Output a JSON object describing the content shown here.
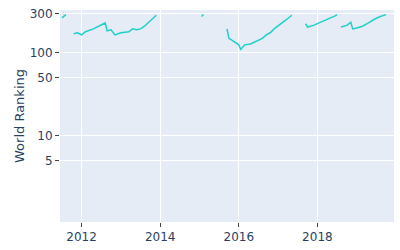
{
  "chart_data": {
    "type": "line",
    "y_label": "World Ranking",
    "color": "#1fd0c8",
    "log": "y",
    "grid": true,
    "xlim": [
      2011.45,
      2019.95
    ],
    "xticks": [
      2012,
      2014,
      2016,
      2018
    ],
    "ylim": [
      0.9,
      330
    ],
    "yticks": [
      5,
      10,
      50,
      100,
      300
    ],
    "x": [
      2011.5,
      2011.55,
      2011.6,
      null,
      2011.8,
      2011.9,
      2012.0,
      2012.1,
      2012.3,
      2012.5,
      2012.6,
      2012.65,
      2012.75,
      2012.85,
      2013.0,
      2013.2,
      2013.3,
      2013.4,
      2013.5,
      2013.6,
      2013.75,
      2013.85,
      2013.9,
      null,
      2015.05,
      2015.1,
      null,
      2015.7,
      2015.75,
      2015.85,
      2015.95,
      2016.0,
      2016.05,
      2016.15,
      2016.3,
      2016.4,
      2016.5,
      2016.6,
      2016.7,
      2016.8,
      2016.9,
      2017.0,
      2017.1,
      2017.2,
      2017.3,
      2017.35,
      null,
      2017.7,
      2017.75,
      2017.9,
      2018.0,
      2018.15,
      2018.3,
      2018.45,
      2018.5,
      null,
      2018.6,
      2018.75,
      2018.85,
      2018.9,
      2019.0,
      2019.15,
      2019.3,
      2019.45,
      2019.6,
      2019.75
    ],
    "values": [
      265,
      280,
      290,
      null,
      170,
      175,
      165,
      180,
      195,
      215,
      230,
      185,
      190,
      165,
      175,
      180,
      195,
      190,
      195,
      210,
      245,
      265,
      285,
      null,
      275,
      290,
      null,
      195,
      150,
      140,
      128,
      125,
      110,
      125,
      128,
      135,
      140,
      150,
      165,
      175,
      195,
      210,
      230,
      250,
      270,
      285,
      null,
      225,
      205,
      215,
      225,
      240,
      260,
      280,
      290,
      null,
      205,
      215,
      235,
      195,
      200,
      210,
      230,
      255,
      275,
      290
    ]
  }
}
